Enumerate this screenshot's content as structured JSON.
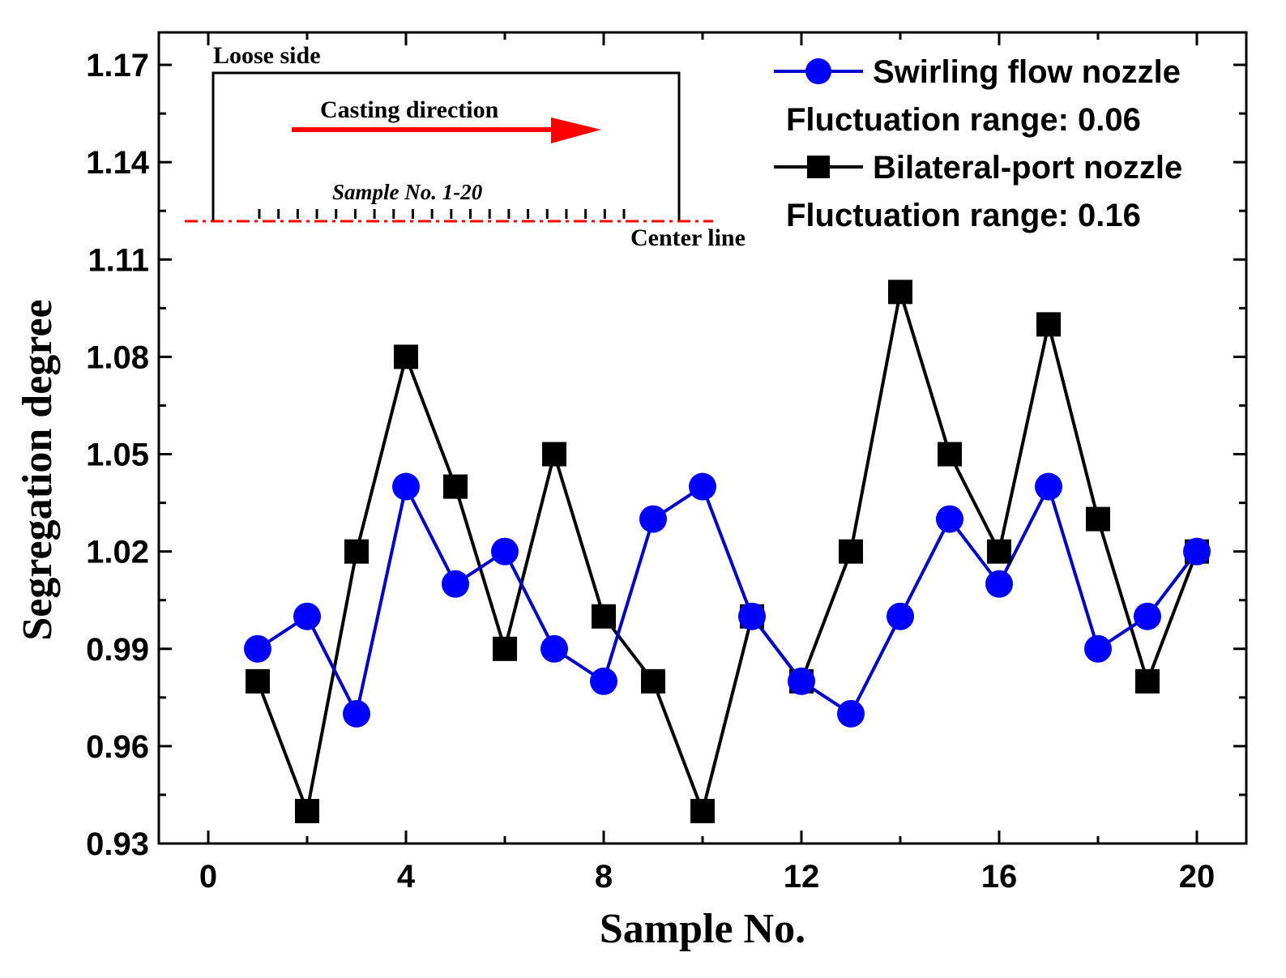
{
  "chart_data": {
    "type": "line",
    "title": "",
    "xlabel": "Sample No.",
    "ylabel": "Segregation degree",
    "xlim": [
      -1,
      21
    ],
    "ylim": [
      0.93,
      1.18
    ],
    "xticks": [
      0,
      4,
      8,
      12,
      16,
      20
    ],
    "xtick_labels": [
      "0",
      "4",
      "8",
      "12",
      "16",
      "20"
    ],
    "yticks": [
      0.93,
      0.96,
      0.99,
      1.02,
      1.05,
      1.08,
      1.11,
      1.14,
      1.17
    ],
    "ytick_labels": [
      "0.93",
      "0.96",
      "0.99",
      "1.02",
      "1.05",
      "1.08",
      "1.11",
      "1.14",
      "1.17"
    ],
    "grid": false,
    "legend_position": "top-right",
    "x": [
      1,
      2,
      3,
      4,
      5,
      6,
      7,
      8,
      9,
      10,
      11,
      12,
      13,
      14,
      15,
      16,
      17,
      18,
      19,
      20
    ],
    "series": [
      {
        "name": "Swirling flow nozzle",
        "color": "#0000ff",
        "line_color": "#0000cc",
        "marker": "circle",
        "note": "Fluctuation range: 0.06",
        "values": [
          0.99,
          1.0,
          0.97,
          1.04,
          1.01,
          1.02,
          0.99,
          0.98,
          1.03,
          1.04,
          1.0,
          0.98,
          0.97,
          1.0,
          1.03,
          1.01,
          1.04,
          0.99,
          1.0,
          1.02
        ]
      },
      {
        "name": "Bilateral-port nozzle",
        "color": "#000000",
        "line_color": "#000000",
        "marker": "square",
        "note": "Fluctuation range: 0.16",
        "values": [
          0.98,
          0.94,
          1.02,
          1.08,
          1.04,
          0.99,
          1.05,
          1.0,
          0.98,
          0.94,
          1.0,
          0.98,
          1.02,
          1.1,
          1.05,
          1.02,
          1.09,
          1.03,
          0.98,
          1.02
        ]
      }
    ],
    "inset": {
      "loose_side_label": "Loose side",
      "casting_direction_label": "Casting direction",
      "sample_label": "Sample No. 1-20",
      "center_line_label": "Center line",
      "arrow_color": "#ff0000",
      "center_line_color": "#ff0000",
      "sample_marks_count": 20
    }
  }
}
